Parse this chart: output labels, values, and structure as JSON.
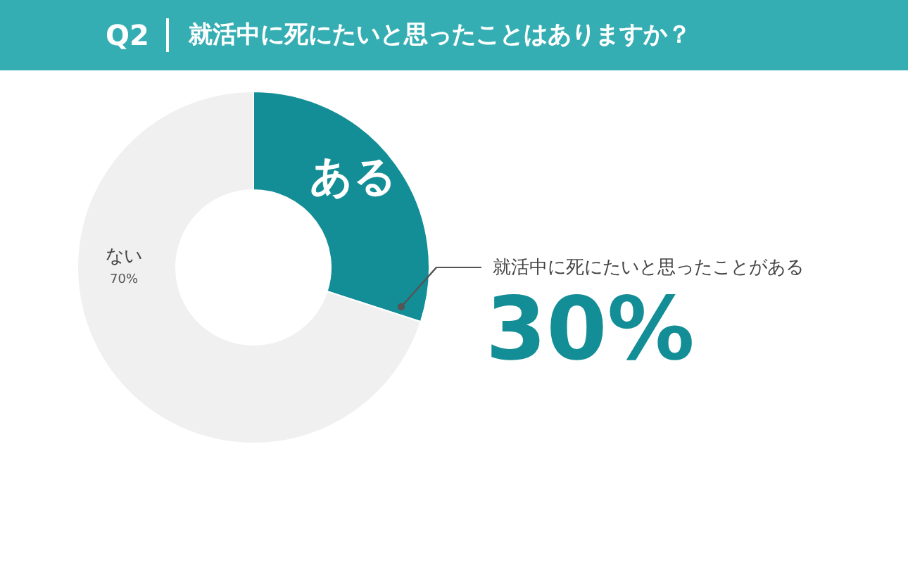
{
  "chart_data": {
    "type": "donut",
    "title": "Q2",
    "subtitle": "就活中に死にたいと思ったことはありますか？",
    "categories": [
      "ある",
      "ない"
    ],
    "values": [
      30,
      70
    ],
    "colors": [
      "#138e96",
      "#f0f0f0"
    ],
    "value_labels": [
      "30%",
      "70%"
    ],
    "annotations": [
      "就活中に死にたいと思ったことがある"
    ]
  }
}
